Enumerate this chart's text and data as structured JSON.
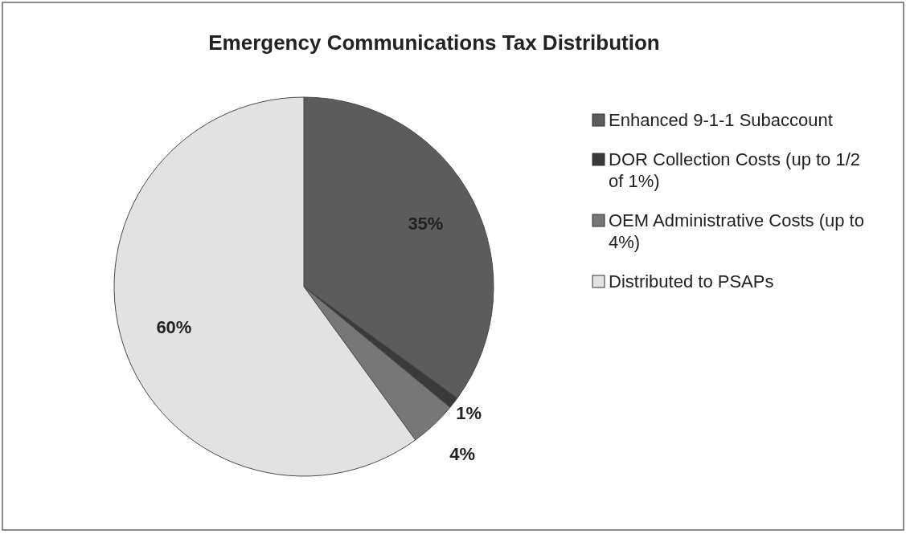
{
  "chart_data": {
    "type": "pie",
    "title": "Emergency Communications Tax Distribution",
    "categories": [
      "Enhanced 9-1-1 Subaccount",
      "DOR Collection Costs (up to 1/2 of 1%)",
      "OEM Administrative Costs (up to 4%)",
      "Distributed to PSAPs"
    ],
    "values": [
      35,
      1,
      4,
      60
    ],
    "value_labels": [
      "35%",
      "1%",
      "4%",
      "60%"
    ],
    "colors": [
      "#5c5c5c",
      "#3a3a3a",
      "#777777",
      "#e2e2e2"
    ],
    "legend": "right"
  }
}
